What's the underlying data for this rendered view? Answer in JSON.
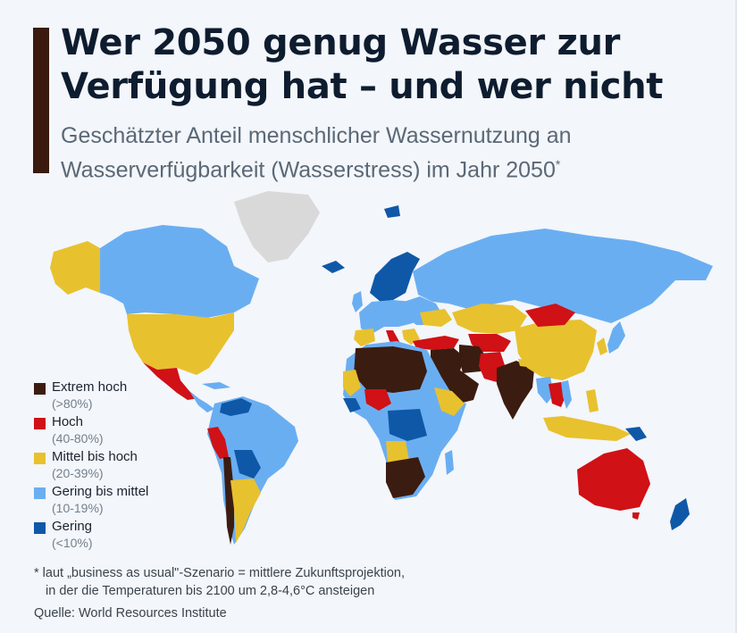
{
  "title_line1": "Wer 2050 genug Wasser zur",
  "title_line2": "Verfügung hat – und wer nicht",
  "subtitle_line1": "Geschätzter Anteil menschlicher Wassernutzung an",
  "subtitle_line2": "Wasserverfügbarkeit (Wasserstress) im Jahr 2050",
  "subtitle_mark": "*",
  "legend": [
    {
      "label": "Extrem hoch",
      "range": "(>80%)",
      "color": "#3b1c10"
    },
    {
      "label": "Hoch",
      "range": "(40-80%)",
      "color": "#d01116"
    },
    {
      "label": "Mittel bis hoch",
      "range": "(20-39%)",
      "color": "#e8c12e"
    },
    {
      "label": "Gering bis mittel",
      "range": "(10-19%)",
      "color": "#6aaef2"
    },
    {
      "label": "Gering",
      "range": "(<10%)",
      "color": "#0f58a8"
    }
  ],
  "no_data_color": "#d9d9d9",
  "footnote_line1": "* laut „business as usual\"-Szenario = mittlere Zukunftsprojektion,",
  "footnote_line2": "in der die Temperaturen bis 2100 um 2,8-4,6°C ansteigen",
  "source": "Quelle: World Resources Institute"
}
